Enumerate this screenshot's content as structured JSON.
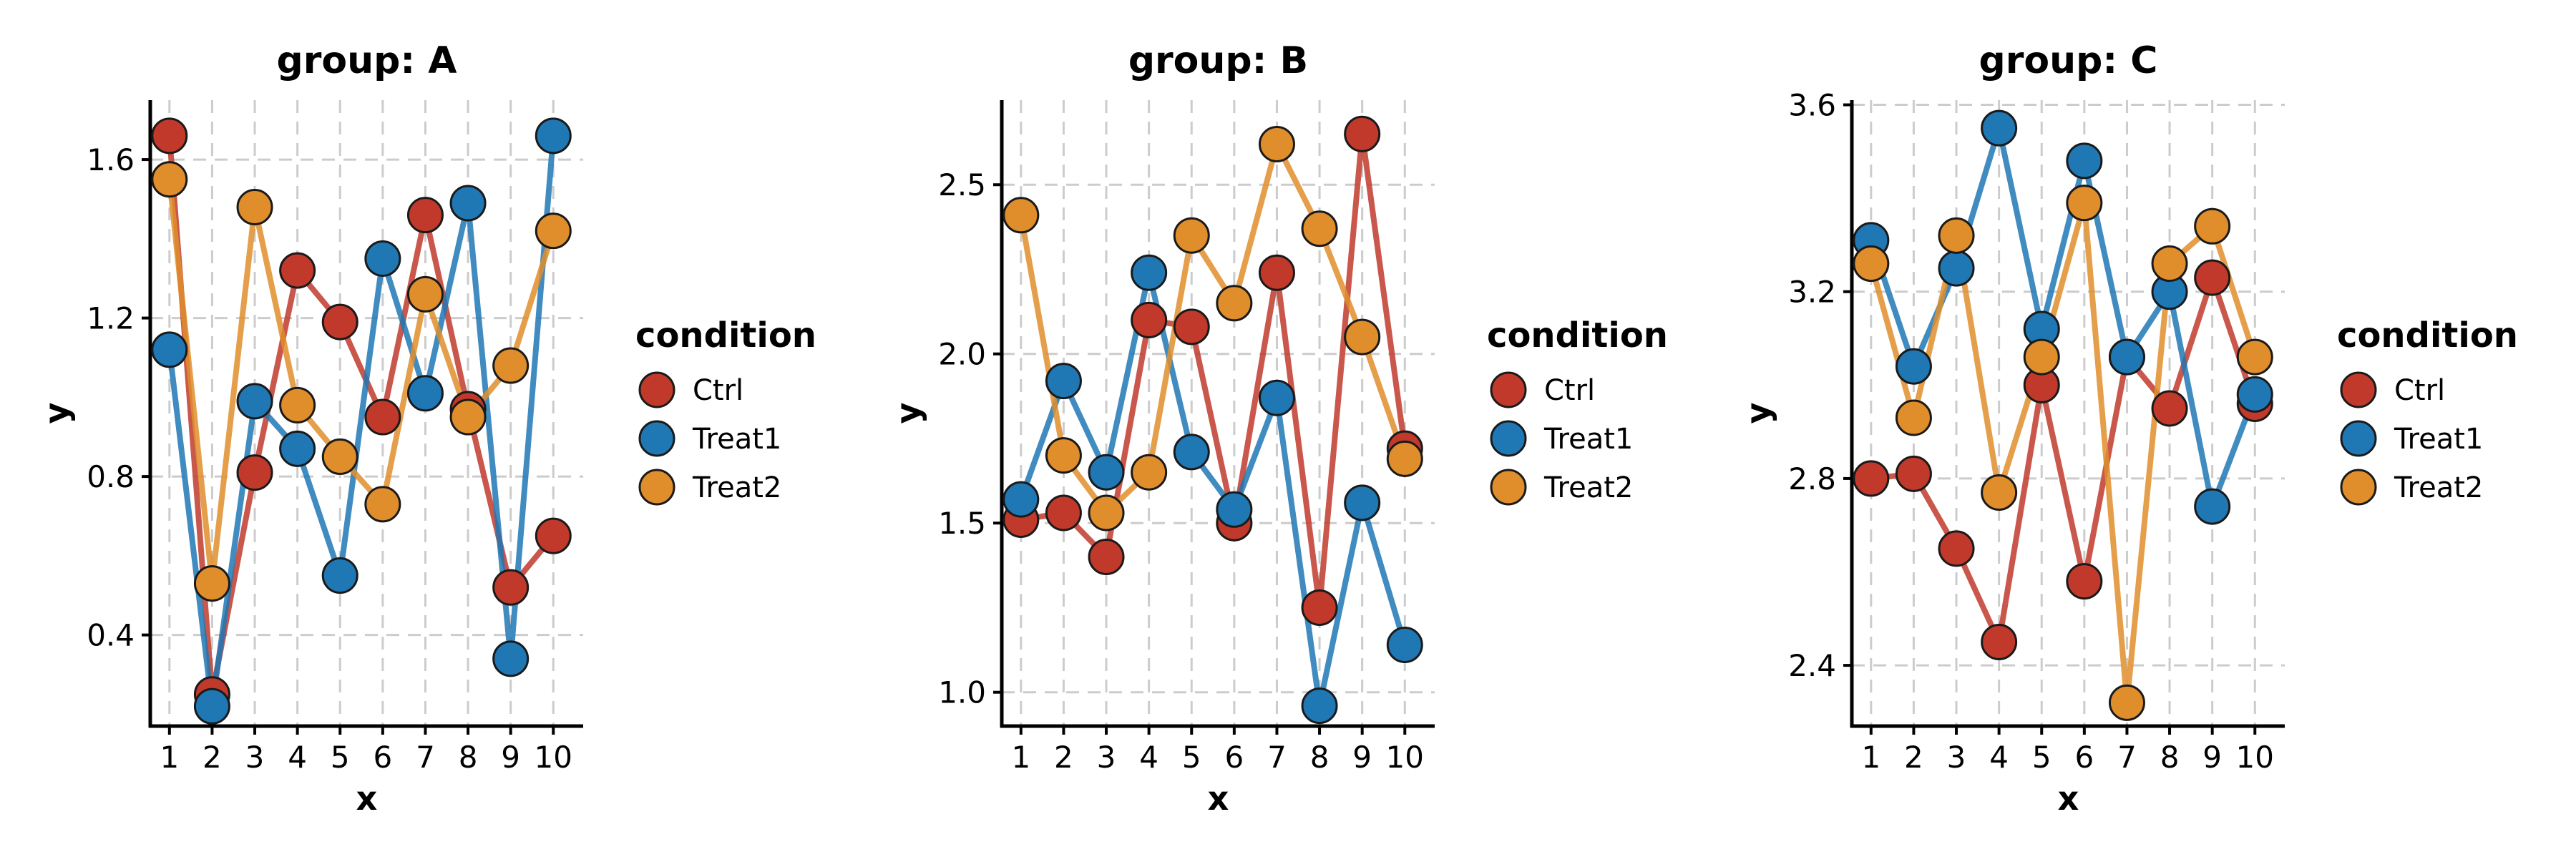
{
  "chart_data": [
    {
      "type": "line",
      "title": "group: A",
      "xlabel": "x",
      "ylabel": "y",
      "x": [
        1,
        2,
        3,
        4,
        5,
        6,
        7,
        8,
        9,
        10
      ],
      "x_tick_labels": [
        "1",
        "2",
        "3",
        "4",
        "5",
        "6",
        "7",
        "8",
        "9",
        "10"
      ],
      "xlim": [
        0.55,
        10.7
      ],
      "ylim": [
        0.17,
        1.75
      ],
      "y_ticks": [
        0.4,
        0.8,
        1.2,
        1.6
      ],
      "y_tick_labels": [
        "0.4",
        "0.8",
        "1.2",
        "1.6"
      ],
      "grid": true,
      "legend_title": "condition",
      "legend_position": "right",
      "series": [
        {
          "name": "Ctrl",
          "color": "#C0392B",
          "values": [
            1.66,
            0.25,
            0.81,
            1.32,
            1.19,
            0.95,
            1.46,
            0.97,
            0.52,
            0.65
          ]
        },
        {
          "name": "Treat1",
          "color": "#1F77B4",
          "values": [
            1.12,
            0.22,
            0.99,
            0.87,
            0.55,
            1.35,
            1.01,
            1.49,
            0.34,
            1.66
          ]
        },
        {
          "name": "Treat2",
          "color": "#E08E2B",
          "values": [
            1.55,
            0.53,
            1.48,
            0.98,
            0.85,
            0.73,
            1.26,
            0.95,
            1.08,
            1.42
          ]
        }
      ]
    },
    {
      "type": "line",
      "title": "group: B",
      "xlabel": "x",
      "ylabel": "y",
      "x": [
        1,
        2,
        3,
        4,
        5,
        6,
        7,
        8,
        9,
        10
      ],
      "x_tick_labels": [
        "1",
        "2",
        "3",
        "4",
        "5",
        "6",
        "7",
        "8",
        "9",
        "10"
      ],
      "xlim": [
        0.55,
        10.7
      ],
      "ylim": [
        0.9,
        2.75
      ],
      "y_ticks": [
        1.0,
        1.5,
        2.0,
        2.5
      ],
      "y_tick_labels": [
        "1.0",
        "1.5",
        "2.0",
        "2.5"
      ],
      "grid": true,
      "legend_title": "condition",
      "legend_position": "right",
      "series": [
        {
          "name": "Ctrl",
          "color": "#C0392B",
          "values": [
            1.51,
            1.53,
            1.4,
            2.1,
            2.08,
            1.5,
            2.24,
            1.25,
            2.65,
            1.72
          ]
        },
        {
          "name": "Treat1",
          "color": "#1F77B4",
          "values": [
            1.57,
            1.92,
            1.65,
            2.24,
            1.71,
            1.54,
            1.87,
            0.96,
            1.56,
            1.14
          ]
        },
        {
          "name": "Treat2",
          "color": "#E08E2B",
          "values": [
            2.41,
            1.7,
            1.53,
            1.65,
            2.35,
            2.15,
            2.62,
            2.37,
            2.05,
            1.69
          ]
        }
      ]
    },
    {
      "type": "line",
      "title": "group: C",
      "xlabel": "x",
      "ylabel": "y",
      "x": [
        1,
        2,
        3,
        4,
        5,
        6,
        7,
        8,
        9,
        10
      ],
      "x_tick_labels": [
        "1",
        "2",
        "3",
        "4",
        "5",
        "6",
        "7",
        "8",
        "9",
        "10"
      ],
      "xlim": [
        0.55,
        10.7
      ],
      "ylim": [
        2.27,
        3.61
      ],
      "y_ticks": [
        2.4,
        2.8,
        3.2,
        3.6
      ],
      "y_tick_labels": [
        "2.4",
        "2.8",
        "3.2",
        "3.6"
      ],
      "grid": true,
      "legend_title": "condition",
      "legend_position": "right",
      "series": [
        {
          "name": "Ctrl",
          "color": "#C0392B",
          "values": [
            2.8,
            2.81,
            2.65,
            2.45,
            3.0,
            2.58,
            3.06,
            2.95,
            3.23,
            2.96
          ]
        },
        {
          "name": "Treat1",
          "color": "#1F77B4",
          "values": [
            3.31,
            3.04,
            3.25,
            3.55,
            3.12,
            3.48,
            3.06,
            3.2,
            2.74,
            2.98
          ]
        },
        {
          "name": "Treat2",
          "color": "#E08E2B",
          "values": [
            3.26,
            2.93,
            3.32,
            2.77,
            3.06,
            3.39,
            2.32,
            3.26,
            3.34,
            3.06
          ]
        }
      ]
    }
  ]
}
